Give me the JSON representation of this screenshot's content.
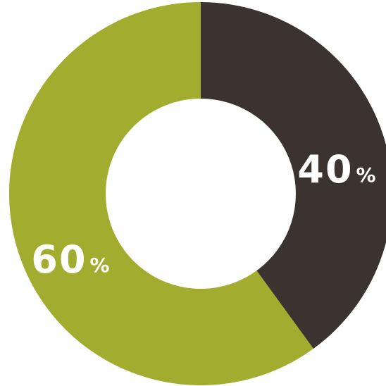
{
  "chart_data": {
    "type": "pie",
    "donut": true,
    "slices": [
      {
        "value": 40,
        "color": "#3b3330",
        "number": "40",
        "unit": "%"
      },
      {
        "value": 60,
        "color": "#a2ac2e",
        "number": "60",
        "unit": "%"
      }
    ]
  }
}
